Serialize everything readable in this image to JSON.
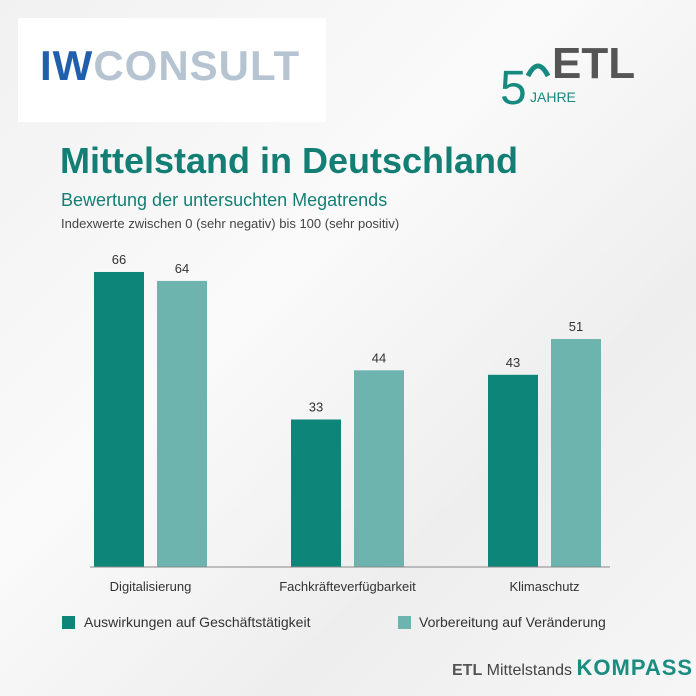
{
  "logos": {
    "left": "IW CONSULT",
    "right": "50 JAHRE ETL"
  },
  "title": "Mittelstand in Deutschland",
  "subtitle": "Bewertung der untersuchten Megatrends",
  "note": "Indexwerte zwischen 0 (sehr negativ) bis 100 (sehr positiv)",
  "chart_data": {
    "type": "bar",
    "categories": [
      "Digitalisierung",
      "Fachkräfteverfügbarkeit",
      "Klimaschutz"
    ],
    "series": [
      {
        "name": "Auswirkungen auf Geschäftstätigkeit",
        "values": [
          66,
          33,
          43
        ],
        "color": "#0e8579"
      },
      {
        "name": "Vorbereitung auf Veränderung",
        "values": [
          64,
          44,
          51
        ],
        "color": "#6db3ae"
      }
    ],
    "ylim": [
      0,
      66
    ],
    "grid": false,
    "legend": "bottom",
    "data_labels": true
  },
  "footer": {
    "brand": "ETL",
    "text": "Mittelstands",
    "kompass": "KOMPASS"
  }
}
